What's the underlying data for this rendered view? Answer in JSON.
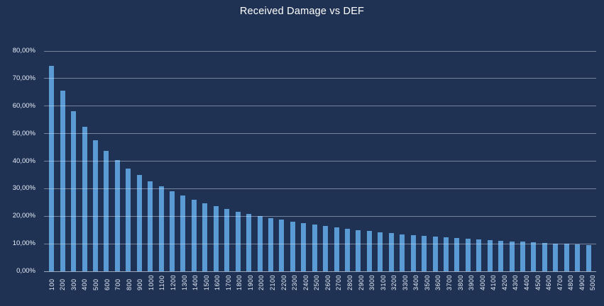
{
  "colors": {
    "background": "#1f3254",
    "bar": "#5b9bd5",
    "gridline": "rgba(222,232,245,0.45)",
    "text": "#ffffff",
    "axis_text": "#e8eef7"
  },
  "chart_data": {
    "type": "bar",
    "title": "Received Damage vs DEF",
    "xlabel": "",
    "ylabel": "",
    "ylim": [
      0,
      80
    ],
    "ytick_step": 10,
    "ytick_labels": [
      "0,00%",
      "10,00%",
      "20,00%",
      "30,00%",
      "40,00%",
      "50,00%",
      "60,00%",
      "70,00%",
      "80,00%"
    ],
    "grid": true,
    "legend": false,
    "categories": [
      "100",
      "200",
      "300",
      "400",
      "500",
      "600",
      "700",
      "800",
      "900",
      "1000",
      "1100",
      "1200",
      "1300",
      "1400",
      "1500",
      "1600",
      "1700",
      "1800",
      "1900",
      "2000",
      "2100",
      "2200",
      "2300",
      "2400",
      "2500",
      "2600",
      "2700",
      "2800",
      "2900",
      "3000",
      "3100",
      "3200",
      "3300",
      "3400",
      "3500",
      "3600",
      "3700",
      "3800",
      "3900",
      "4000",
      "4100",
      "4200",
      "4300",
      "4400",
      "4500",
      "4600",
      "4700",
      "4800",
      "4900",
      "5000"
    ],
    "values": [
      74.6,
      65.5,
      58.2,
      52.4,
      47.7,
      43.7,
      40.3,
      37.4,
      34.9,
      32.7,
      30.8,
      29.0,
      27.5,
      26.1,
      24.8,
      23.7,
      22.7,
      21.7,
      20.9,
      20.1,
      19.3,
      18.7,
      18.0,
      17.4,
      16.9,
      16.4,
      15.9,
      15.4,
      15.0,
      14.6,
      14.2,
      13.9,
      13.5,
      13.2,
      12.9,
      12.6,
      12.3,
      12.1,
      11.8,
      11.6,
      11.3,
      11.1,
      10.9,
      10.7,
      10.5,
      10.3,
      10.1,
      10.0,
      9.8,
      9.6
    ]
  }
}
